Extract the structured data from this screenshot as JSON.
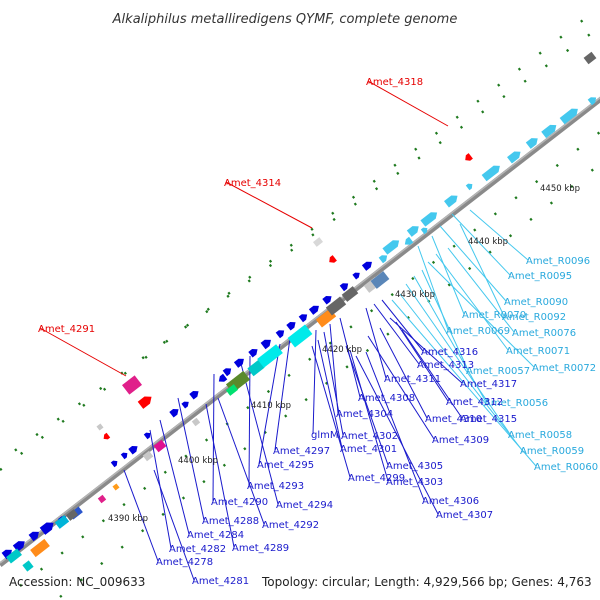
{
  "title": "Alkaliphilus metalliredigens QYMF, complete genome",
  "footer": {
    "accession": "Accession: NC_009633",
    "topology": "Topology: circular; Length: 4,929,566 bp; Genes: 4,763"
  },
  "kbp_ticks": [
    "4390 kbp",
    "4400 kbp",
    "4410 kbp",
    "4420 kbp",
    "4430 kbp",
    "4440 kbp",
    "4450 kbp"
  ],
  "colors": {
    "backbone": "#8a8a8a",
    "forward_gene": "#0000dd",
    "rna_gene": "#44c8ee",
    "highlight": "#ff0000",
    "dots": "#1f7a1f"
  },
  "labels": {
    "red": [
      "Amet_4318",
      "Amet_4314",
      "Amet_4291"
    ],
    "cyan": [
      "Amet_R0096",
      "Amet_R0095",
      "Amet_R0090",
      "Amet_R0092",
      "Amet_R0070",
      "Amet_R0069",
      "Amet_R0076",
      "Amet_R0071",
      "Amet_R0072",
      "Amet_R0057",
      "Amet_R0056",
      "Amet_R0058",
      "Amet_R0059",
      "Amet_R0060"
    ],
    "blue": [
      "Amet_4316",
      "Amet_4313",
      "Amet_4311",
      "Amet_4317",
      "Amet_4308",
      "Amet_4312",
      "Amet_4304",
      "Amet_4310",
      "Amet_4315",
      "glmM",
      "Amet_4302",
      "Amet_4309",
      "Amet_4297",
      "Amet_4301",
      "Amet_4295",
      "Amet_4305",
      "Amet_4299",
      "Amet_4303",
      "Amet_4293",
      "Amet_4294",
      "Amet_4290",
      "Amet_4306",
      "Amet_4307",
      "Amet_4288",
      "Amet_4292",
      "Amet_4284",
      "Amet_4282",
      "Amet_4289",
      "Amet_4278",
      "Amet_4281"
    ]
  }
}
